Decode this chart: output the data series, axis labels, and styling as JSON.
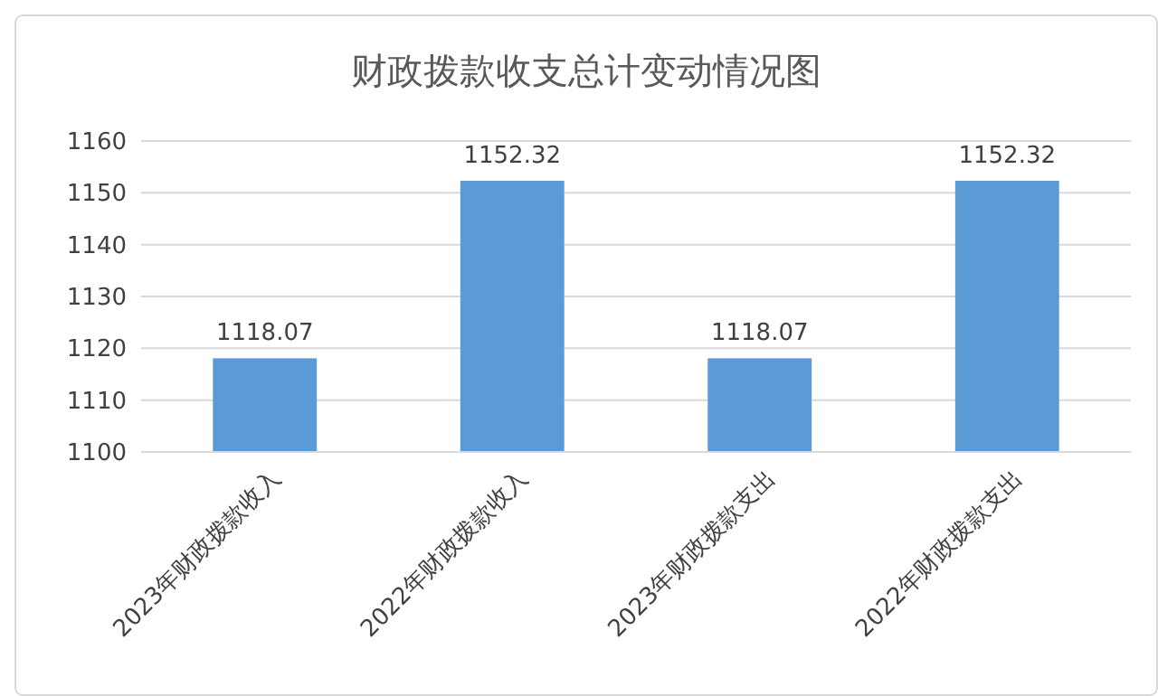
{
  "chart_data": {
    "type": "bar",
    "title": "财政拨款收支总计变动情况图",
    "categories": [
      "2023年财政拨款收入",
      "2022年财政拨款收入",
      "2023年财政拨款支出",
      "2022年财政拨款支出"
    ],
    "values": [
      1118.07,
      1152.32,
      1118.07,
      1152.32
    ],
    "color": "#5b9bd5",
    "ylim": [
      1100,
      1160
    ],
    "yticks": [
      1100,
      1110,
      1120,
      1130,
      1140,
      1150,
      1160
    ],
    "grid": "y",
    "data_labels": true
  }
}
